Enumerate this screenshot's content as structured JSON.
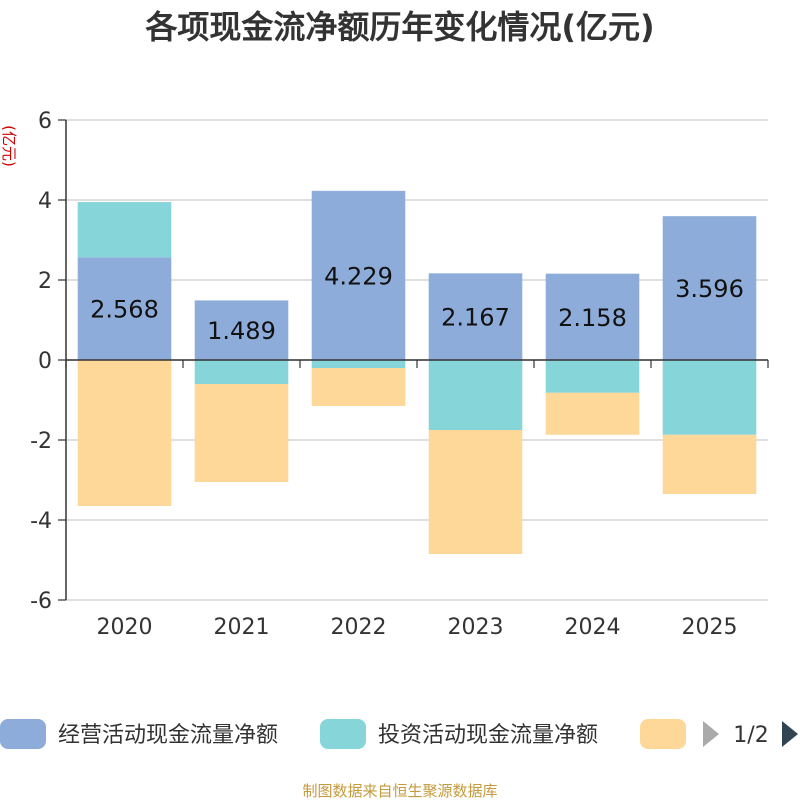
{
  "chart_data": {
    "type": "bar",
    "stacked": true,
    "title": "各项现金流净额历年变化情况(亿元)",
    "ylabel": "(亿元)",
    "xlabel": "",
    "categories": [
      "2020",
      "2021",
      "2022",
      "2023",
      "2024",
      "2025"
    ],
    "ylim": [
      -6,
      6
    ],
    "yticks": [
      6,
      4,
      2,
      0,
      -2,
      -4,
      -6
    ],
    "grid": true,
    "series": [
      {
        "name": "经营活动现金流量净额",
        "color": "#8eacd9",
        "values": [
          2.568,
          1.489,
          4.229,
          2.167,
          2.158,
          3.596
        ],
        "show_labels": true
      },
      {
        "name": "投资活动现金流量净额",
        "color": "#86d5d8",
        "values": [
          1.38,
          -0.6,
          -0.2,
          -1.75,
          -0.82,
          -1.87
        ],
        "show_labels": false
      },
      {
        "name": "",
        "color": "#fdd899",
        "values": [
          -3.65,
          -2.45,
          -0.95,
          -3.1,
          -1.05,
          -1.48
        ],
        "show_labels": false
      }
    ],
    "legend": {
      "placement": "bottom",
      "page": "1/2"
    },
    "source": "制图数据来自恒生聚源数据库"
  }
}
